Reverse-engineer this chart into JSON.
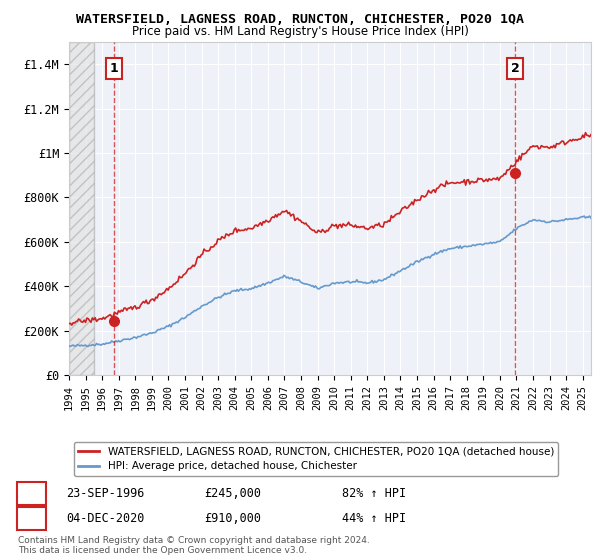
{
  "title": "WATERSFIELD, LAGNESS ROAD, RUNCTON, CHICHESTER, PO20 1QA",
  "subtitle": "Price paid vs. HM Land Registry's House Price Index (HPI)",
  "ylim": [
    0,
    1500000
  ],
  "xlim_start": 1994.0,
  "xlim_end": 2025.5,
  "yticks": [
    0,
    200000,
    400000,
    600000,
    800000,
    1000000,
    1200000,
    1400000
  ],
  "ytick_labels": [
    "£0",
    "£200K",
    "£400K",
    "£600K",
    "£800K",
    "£1M",
    "£1.2M",
    "£1.4M"
  ],
  "xticks": [
    1994,
    1995,
    1996,
    1997,
    1998,
    1999,
    2000,
    2001,
    2002,
    2003,
    2004,
    2005,
    2006,
    2007,
    2008,
    2009,
    2010,
    2011,
    2012,
    2013,
    2014,
    2015,
    2016,
    2017,
    2018,
    2019,
    2020,
    2021,
    2022,
    2023,
    2024,
    2025
  ],
  "hpi_color": "#6699cc",
  "price_color": "#cc2222",
  "point1_x": 1996.73,
  "point1_y": 245000,
  "point2_x": 2020.92,
  "point2_y": 910000,
  "legend_line1": "WATERSFIELD, LAGNESS ROAD, RUNCTON, CHICHESTER, PO20 1QA (detached house)",
  "legend_line2": "HPI: Average price, detached house, Chichester",
  "note1_date": "23-SEP-1996",
  "note1_price": "£245,000",
  "note1_hpi": "82% ↑ HPI",
  "note2_date": "04-DEC-2020",
  "note2_price": "£910,000",
  "note2_hpi": "44% ↑ HPI",
  "footer": "Contains HM Land Registry data © Crown copyright and database right 2024.\nThis data is licensed under the Open Government Licence v3.0.",
  "hatched_end": 1995.5,
  "bg_color": "#eef2f8"
}
